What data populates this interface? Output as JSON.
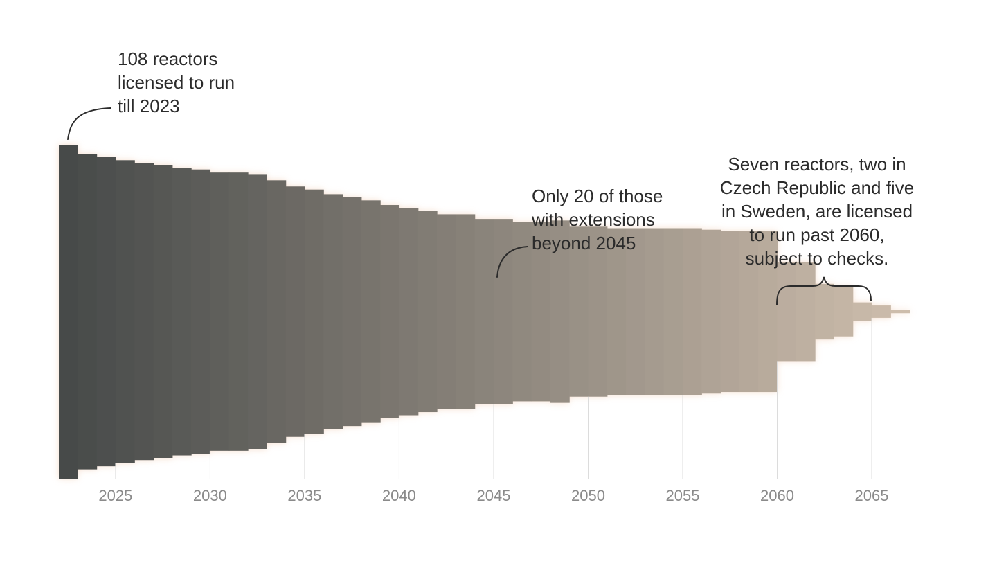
{
  "chart_data": {
    "type": "bar",
    "x_start": 2022,
    "xlim": [
      2022,
      2065
    ],
    "ylim": [
      -108,
      108
    ],
    "x_ticks": [
      "2025",
      "2030",
      "2035",
      "2040",
      "2045",
      "2050",
      "2055",
      "2060",
      "2065"
    ],
    "values": [
      108,
      102,
      100,
      98,
      96,
      95,
      93,
      92,
      90,
      90,
      89,
      85,
      81,
      79,
      76,
      74,
      72,
      69,
      67,
      65,
      63,
      63,
      60,
      60,
      58,
      58,
      59,
      55,
      55,
      54,
      54,
      54,
      54,
      54,
      53,
      52,
      52,
      52,
      32,
      32,
      18,
      16,
      6,
      4,
      1
    ],
    "colors": {
      "start": "#474a49",
      "end": "#cdbdac",
      "grid": "#dcdcdc"
    },
    "annotations": [
      {
        "text": "108 reactors\nlicensed to run\ntill 2023"
      },
      {
        "text": "Only 20 of those\nwith extensions\nbeyond 2045"
      },
      {
        "text": "Seven reactors, two in\nCzech Republic and five\nin Sweden, are licensed\nto run past 2060,\nsubject to checks."
      }
    ]
  }
}
